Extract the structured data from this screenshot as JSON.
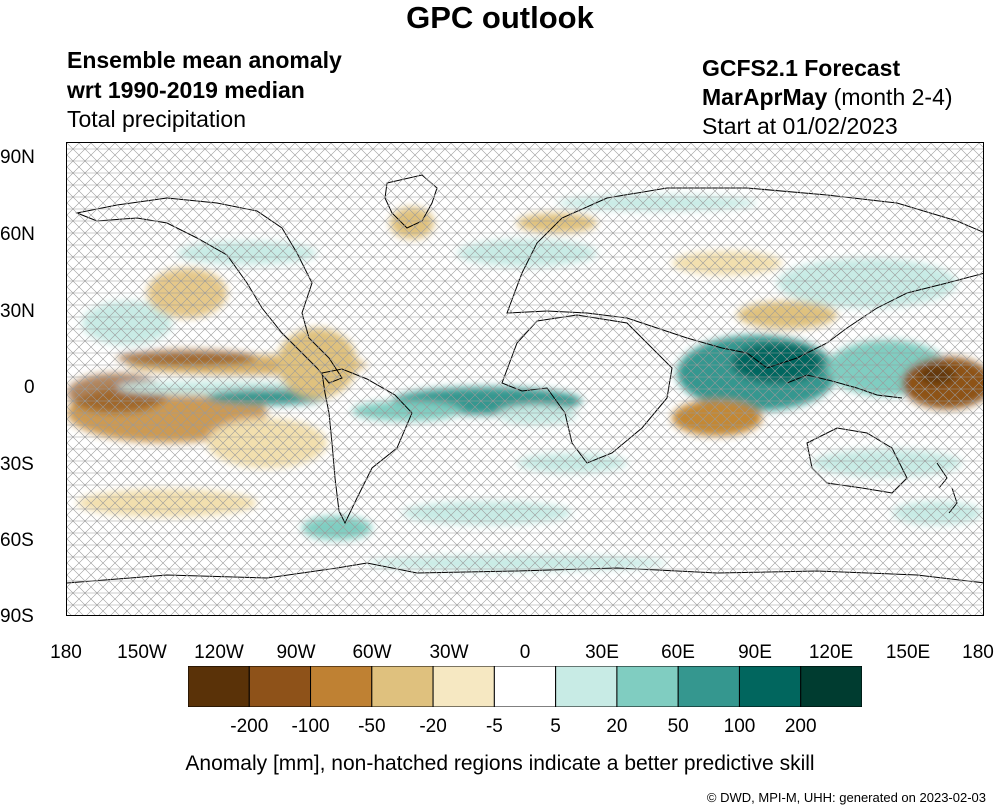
{
  "title": "GPC outlook",
  "header_left": {
    "line1": "Ensemble mean anomaly",
    "line2": "wrt 1990-2019 median",
    "line3": "Total precipitation"
  },
  "header_right": {
    "line1": "GCFS2.1 Forecast",
    "season": "MarAprMay",
    "season_note": "(month 2-4)",
    "line3": "Start at 01/02/2023"
  },
  "lat_labels": [
    "90N",
    "60N",
    "30N",
    "0",
    "30S",
    "60S",
    "90S"
  ],
  "lon_labels": [
    "180",
    "150W",
    "120W",
    "90W",
    "60W",
    "30W",
    "0",
    "30E",
    "60E",
    "90E",
    "120E",
    "150E",
    "180"
  ],
  "colorbar": {
    "colors": [
      "#5a3208",
      "#8e5219",
      "#bf8133",
      "#dfc17e",
      "#f6e8c2",
      "#ffffff",
      "#c8ebe5",
      "#80cdc1",
      "#35978f",
      "#01665e",
      "#003c30"
    ],
    "labels": [
      "-200",
      "-100",
      "-50",
      "-20",
      "-5",
      "5",
      "20",
      "50",
      "100",
      "200"
    ]
  },
  "footnote": "Anomaly [mm], non-hatched regions indicate a better predictive skill",
  "credit": "© DWD, MPI-M, UHH: generated on 2023-02-03"
}
